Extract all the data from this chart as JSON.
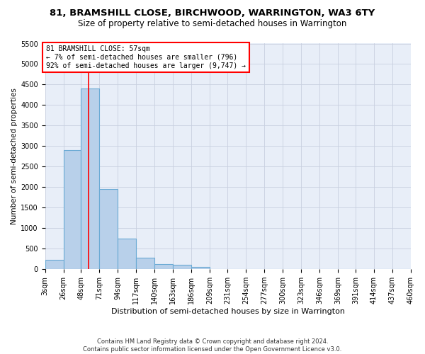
{
  "title_line1": "81, BRAMSHILL CLOSE, BIRCHWOOD, WARRINGTON, WA3 6TY",
  "title_line2": "Size of property relative to semi-detached houses in Warrington",
  "xlabel": "Distribution of semi-detached houses by size in Warrington",
  "ylabel": "Number of semi-detached properties",
  "footnote": "Contains HM Land Registry data © Crown copyright and database right 2024.\nContains public sector information licensed under the Open Government Licence v3.0.",
  "bin_edges": [
    3,
    26,
    48,
    71,
    94,
    117,
    140,
    163,
    186,
    209,
    231,
    254,
    277,
    300,
    323,
    346,
    369,
    391,
    414,
    437,
    460
  ],
  "bin_labels": [
    "3sqm",
    "26sqm",
    "48sqm",
    "71sqm",
    "94sqm",
    "117sqm",
    "140sqm",
    "163sqm",
    "186sqm",
    "209sqm",
    "231sqm",
    "254sqm",
    "277sqm",
    "300sqm",
    "323sqm",
    "346sqm",
    "369sqm",
    "391sqm",
    "414sqm",
    "437sqm",
    "460sqm"
  ],
  "counts": [
    220,
    2900,
    4400,
    1950,
    740,
    280,
    120,
    100,
    60,
    0,
    0,
    0,
    0,
    0,
    0,
    0,
    0,
    0,
    0,
    0
  ],
  "bar_color": "#b8d0ea",
  "bar_edgecolor": "#6aaad4",
  "red_line_x": 57,
  "annotation_text": "81 BRAMSHILL CLOSE: 57sqm\n← 7% of semi-detached houses are smaller (796)\n92% of semi-detached houses are larger (9,747) →",
  "annotation_box_color": "white",
  "annotation_box_edgecolor": "red",
  "red_line_color": "red",
  "ylim": [
    0,
    5500
  ],
  "yticks": [
    0,
    500,
    1000,
    1500,
    2000,
    2500,
    3000,
    3500,
    4000,
    4500,
    5000,
    5500
  ],
  "background_color": "#e8eef8",
  "grid_color": "#c8d0e0",
  "title_fontsize": 9.5,
  "subtitle_fontsize": 8.5,
  "xlabel_fontsize": 8,
  "ylabel_fontsize": 7.5,
  "tick_fontsize": 7
}
